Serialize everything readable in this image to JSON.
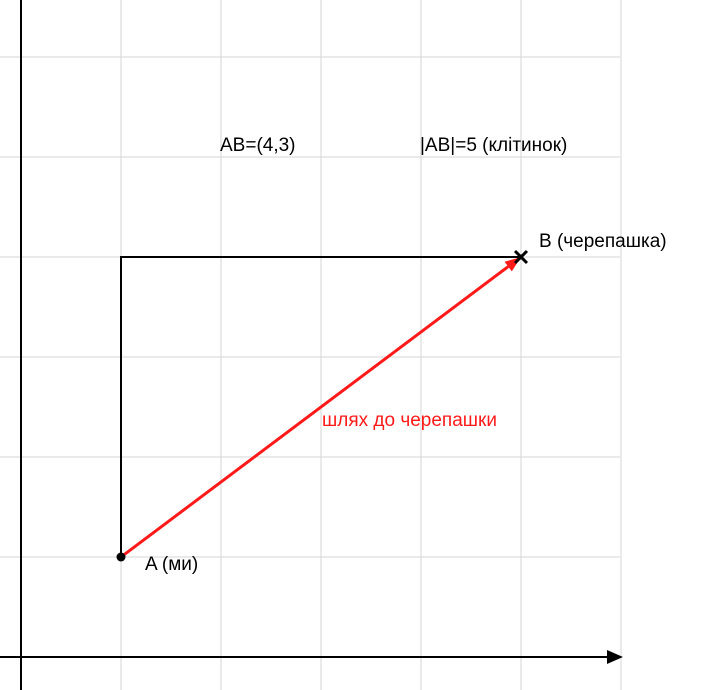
{
  "labels": {
    "vector": "AB=(4,3)",
    "length": "|AB|=5 (клітинок)",
    "point_a": "A (ми)",
    "point_b": "B (черепашка)",
    "path": "шлях до черепашки"
  },
  "points": {
    "A": {
      "x": 1,
      "y": 1
    },
    "B": {
      "x": 5,
      "y": 4
    }
  },
  "colors": {
    "grid": "#d6d6d6",
    "axis": "#000000",
    "path": "#ff1a1a",
    "text": "#000000"
  },
  "icons": {
    "point_a": "filled-dot-icon",
    "point_b": "cross-icon"
  }
}
